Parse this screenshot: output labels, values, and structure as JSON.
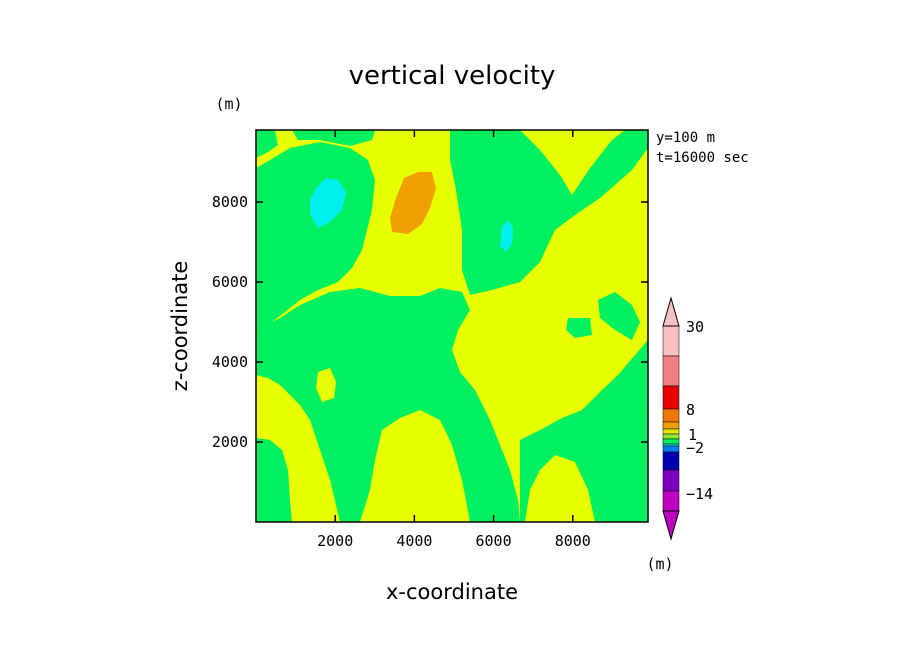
{
  "chart_data": {
    "type": "heatmap",
    "title": "vertical velocity",
    "xlabel": "x-coordinate",
    "ylabel": "z-coordinate",
    "y_unit": "(m)",
    "annotation_lines": [
      "y=100 m",
      "t=16000 sec"
    ],
    "xlim": [
      0,
      9900
    ],
    "ylim": [
      0,
      9800
    ],
    "x_ticks": [
      2000,
      4000,
      6000,
      8000
    ],
    "y_ticks": [
      2000,
      4000,
      6000,
      8000
    ],
    "x_tick_labels": [
      "2000",
      "4000",
      "6000",
      "8000"
    ],
    "y_tick_labels": [
      "2000",
      "4000",
      "6000",
      "8000"
    ],
    "grid": false,
    "colorbar": {
      "unit": "(m)",
      "tick_labels": [
        "30",
        "8",
        "1",
        "−2",
        "−14"
      ],
      "colors_top_to_bottom": [
        "#f8c0c0",
        "#f08080",
        "#e80000",
        "#f07800",
        "#f0a000",
        "#e8e800",
        "#90e830",
        "#00f060",
        "#00e8e8",
        "#0080f0",
        "#0000b0",
        "#8000c0",
        "#c000c0"
      ],
      "extend": "both"
    },
    "field_colors": {
      "background": "#e8ff00",
      "green": "#00f060",
      "cyan": "#00f0f0",
      "orange": "#f0a000"
    }
  }
}
